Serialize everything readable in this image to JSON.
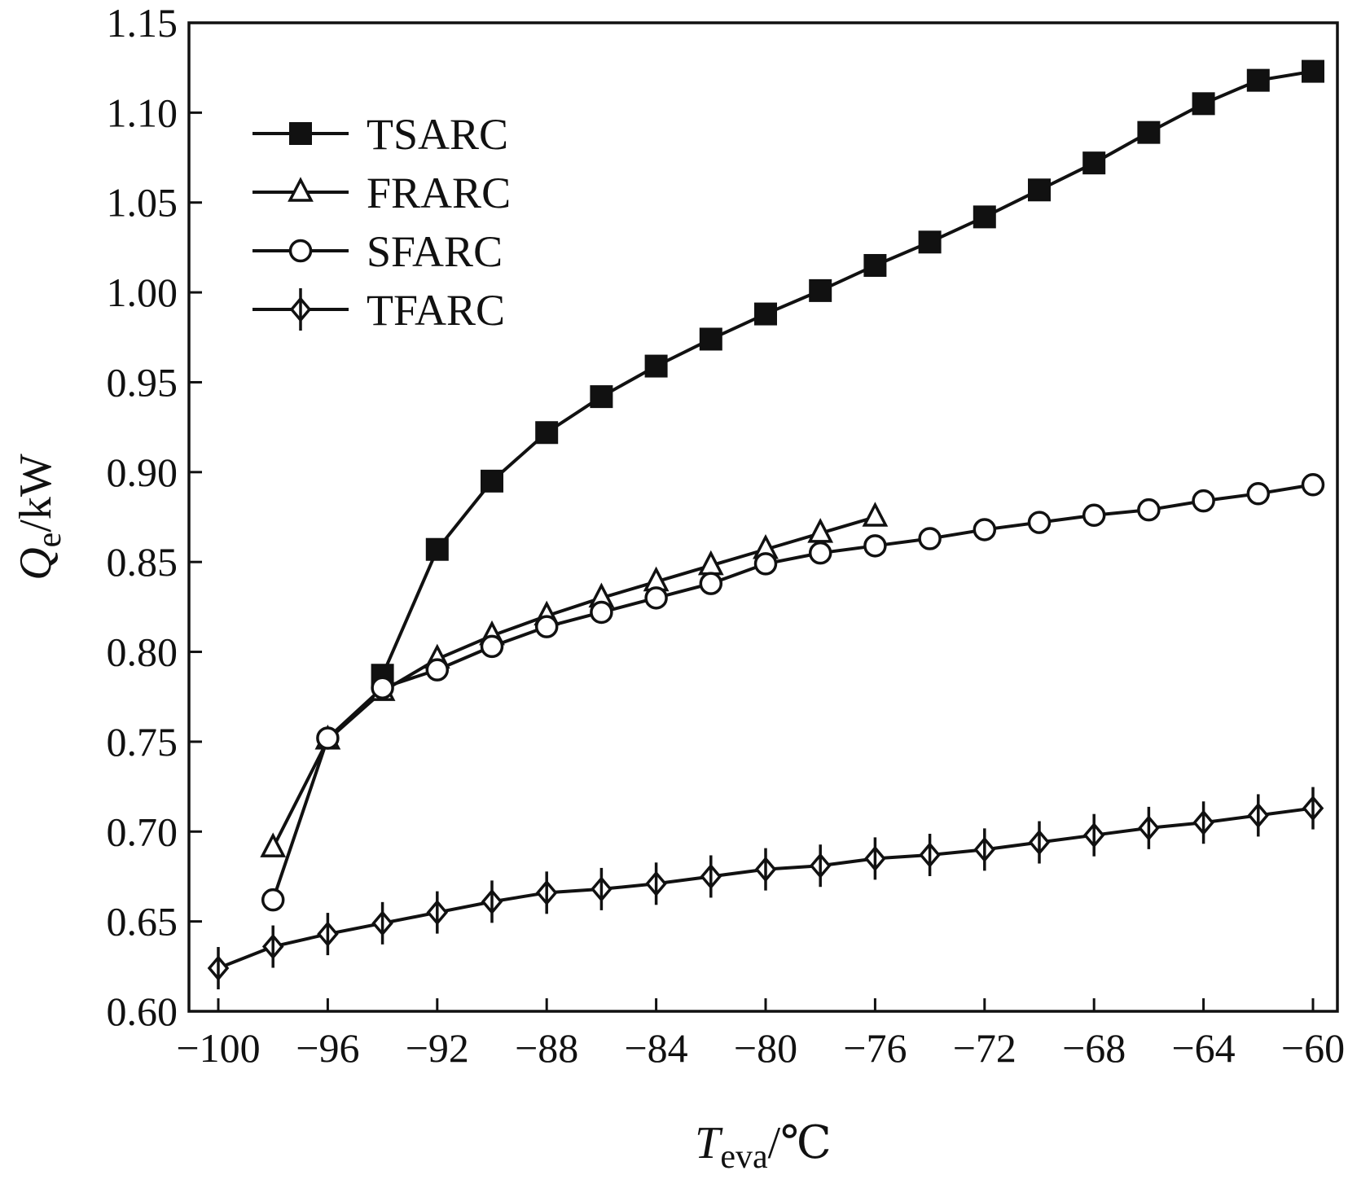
{
  "chart_data": {
    "type": "line",
    "xlabel": {
      "var": "T",
      "sub": "eva",
      "unit": "/℃"
    },
    "ylabel": {
      "var": "Q",
      "sub": "e",
      "unit": "/kW"
    },
    "xlim": [
      -100,
      -60
    ],
    "ylim": [
      0.6,
      1.15
    ],
    "x_ticks": [
      -100,
      -96,
      -92,
      -88,
      -84,
      -80,
      -76,
      -72,
      -68,
      -64,
      -60
    ],
    "x_tick_labels": [
      "−100",
      "−96",
      "−92",
      "−88",
      "−84",
      "−80",
      "−76",
      "−72",
      "−68",
      "−64",
      "−60"
    ],
    "y_ticks": [
      0.6,
      0.65,
      0.7,
      0.75,
      0.8,
      0.85,
      0.9,
      0.95,
      1.0,
      1.05,
      1.1,
      1.15
    ],
    "y_tick_labels": [
      "0.60",
      "0.65",
      "0.70",
      "0.75",
      "0.80",
      "0.85",
      "0.90",
      "0.95",
      "1.00",
      "1.05",
      "1.10",
      "1.15"
    ],
    "grid": false,
    "legend_position": "top-left",
    "colors": {
      "line": "#111111",
      "marker_fill_open": "#ffffff",
      "marker_fill_solid": "#111111"
    },
    "series": [
      {
        "name": "TSARC",
        "marker": "square-filled",
        "x": [
          -94,
          -92,
          -90,
          -88,
          -86,
          -84,
          -82,
          -80,
          -78,
          -76,
          -74,
          -72,
          -70,
          -68,
          -66,
          -64,
          -62,
          -60
        ],
        "y": [
          0.787,
          0.857,
          0.895,
          0.922,
          0.942,
          0.959,
          0.974,
          0.988,
          1.001,
          1.015,
          1.028,
          1.042,
          1.057,
          1.072,
          1.089,
          1.105,
          1.118,
          1.123
        ]
      },
      {
        "name": "FRARC",
        "marker": "triangle-open",
        "x": [
          -98,
          -96,
          -94,
          -92,
          -90,
          -88,
          -86,
          -84,
          -82,
          -80,
          -78,
          -76
        ],
        "y": [
          0.691,
          0.751,
          0.778,
          0.796,
          0.809,
          0.82,
          0.83,
          0.839,
          0.848,
          0.857,
          0.866,
          0.875
        ]
      },
      {
        "name": "SFARC",
        "marker": "circle-open",
        "x": [
          -98,
          -96,
          -94,
          -92,
          -90,
          -88,
          -86,
          -84,
          -82,
          -80,
          -78,
          -76,
          -74,
          -72,
          -70,
          -68,
          -66,
          -64,
          -62,
          -60
        ],
        "y": [
          0.662,
          0.752,
          0.78,
          0.79,
          0.803,
          0.814,
          0.822,
          0.83,
          0.838,
          0.849,
          0.855,
          0.859,
          0.863,
          0.868,
          0.872,
          0.876,
          0.879,
          0.884,
          0.888,
          0.893
        ]
      },
      {
        "name": "TFARC",
        "marker": "diamond-cross",
        "x": [
          -100,
          -98,
          -96,
          -94,
          -92,
          -90,
          -88,
          -86,
          -84,
          -82,
          -80,
          -78,
          -76,
          -74,
          -72,
          -70,
          -68,
          -66,
          -64,
          -62,
          -60
        ],
        "y": [
          0.624,
          0.636,
          0.643,
          0.649,
          0.655,
          0.661,
          0.666,
          0.668,
          0.671,
          0.675,
          0.679,
          0.681,
          0.685,
          0.687,
          0.69,
          0.694,
          0.698,
          0.702,
          0.705,
          0.709,
          0.713
        ]
      }
    ]
  }
}
